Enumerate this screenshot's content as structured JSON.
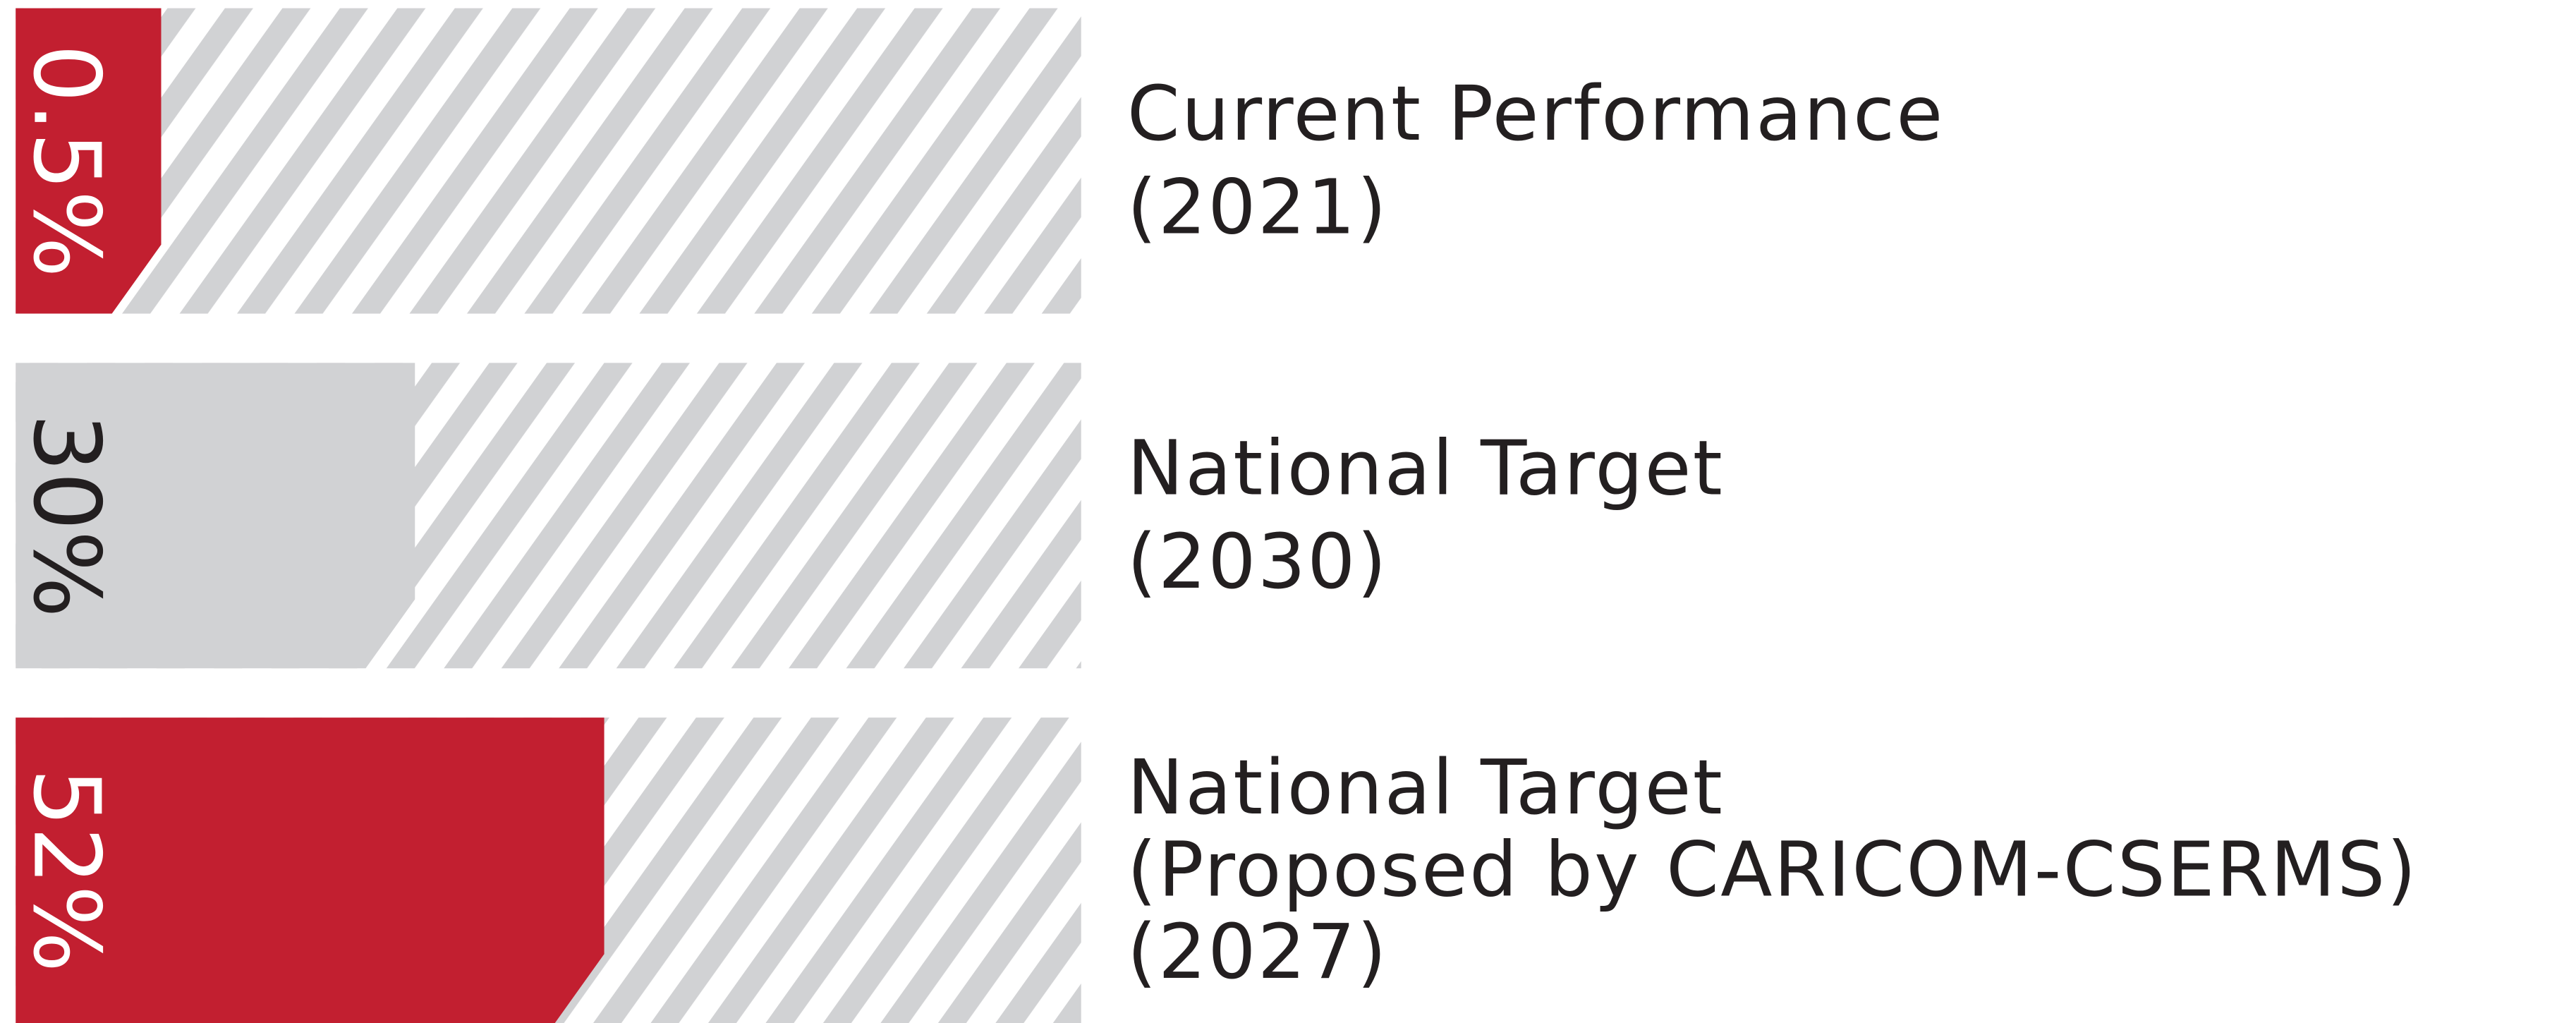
{
  "chart_data": {
    "type": "bar",
    "orientation": "horizontal",
    "categories": [
      [
        "Current Performance",
        "(2021)"
      ],
      [
        "National Target",
        "(2030)"
      ],
      [
        "National Target",
        "(Proposed by CARICOM-CSERMS)",
        "(2027)"
      ]
    ],
    "values": [
      0.5,
      30,
      52
    ],
    "value_labels": [
      "0.5%",
      "30%",
      "52%"
    ],
    "colors": [
      "#c21f30",
      "#d1d2d4",
      "#c21f30"
    ],
    "track_color": "#d1d2d4"
  }
}
